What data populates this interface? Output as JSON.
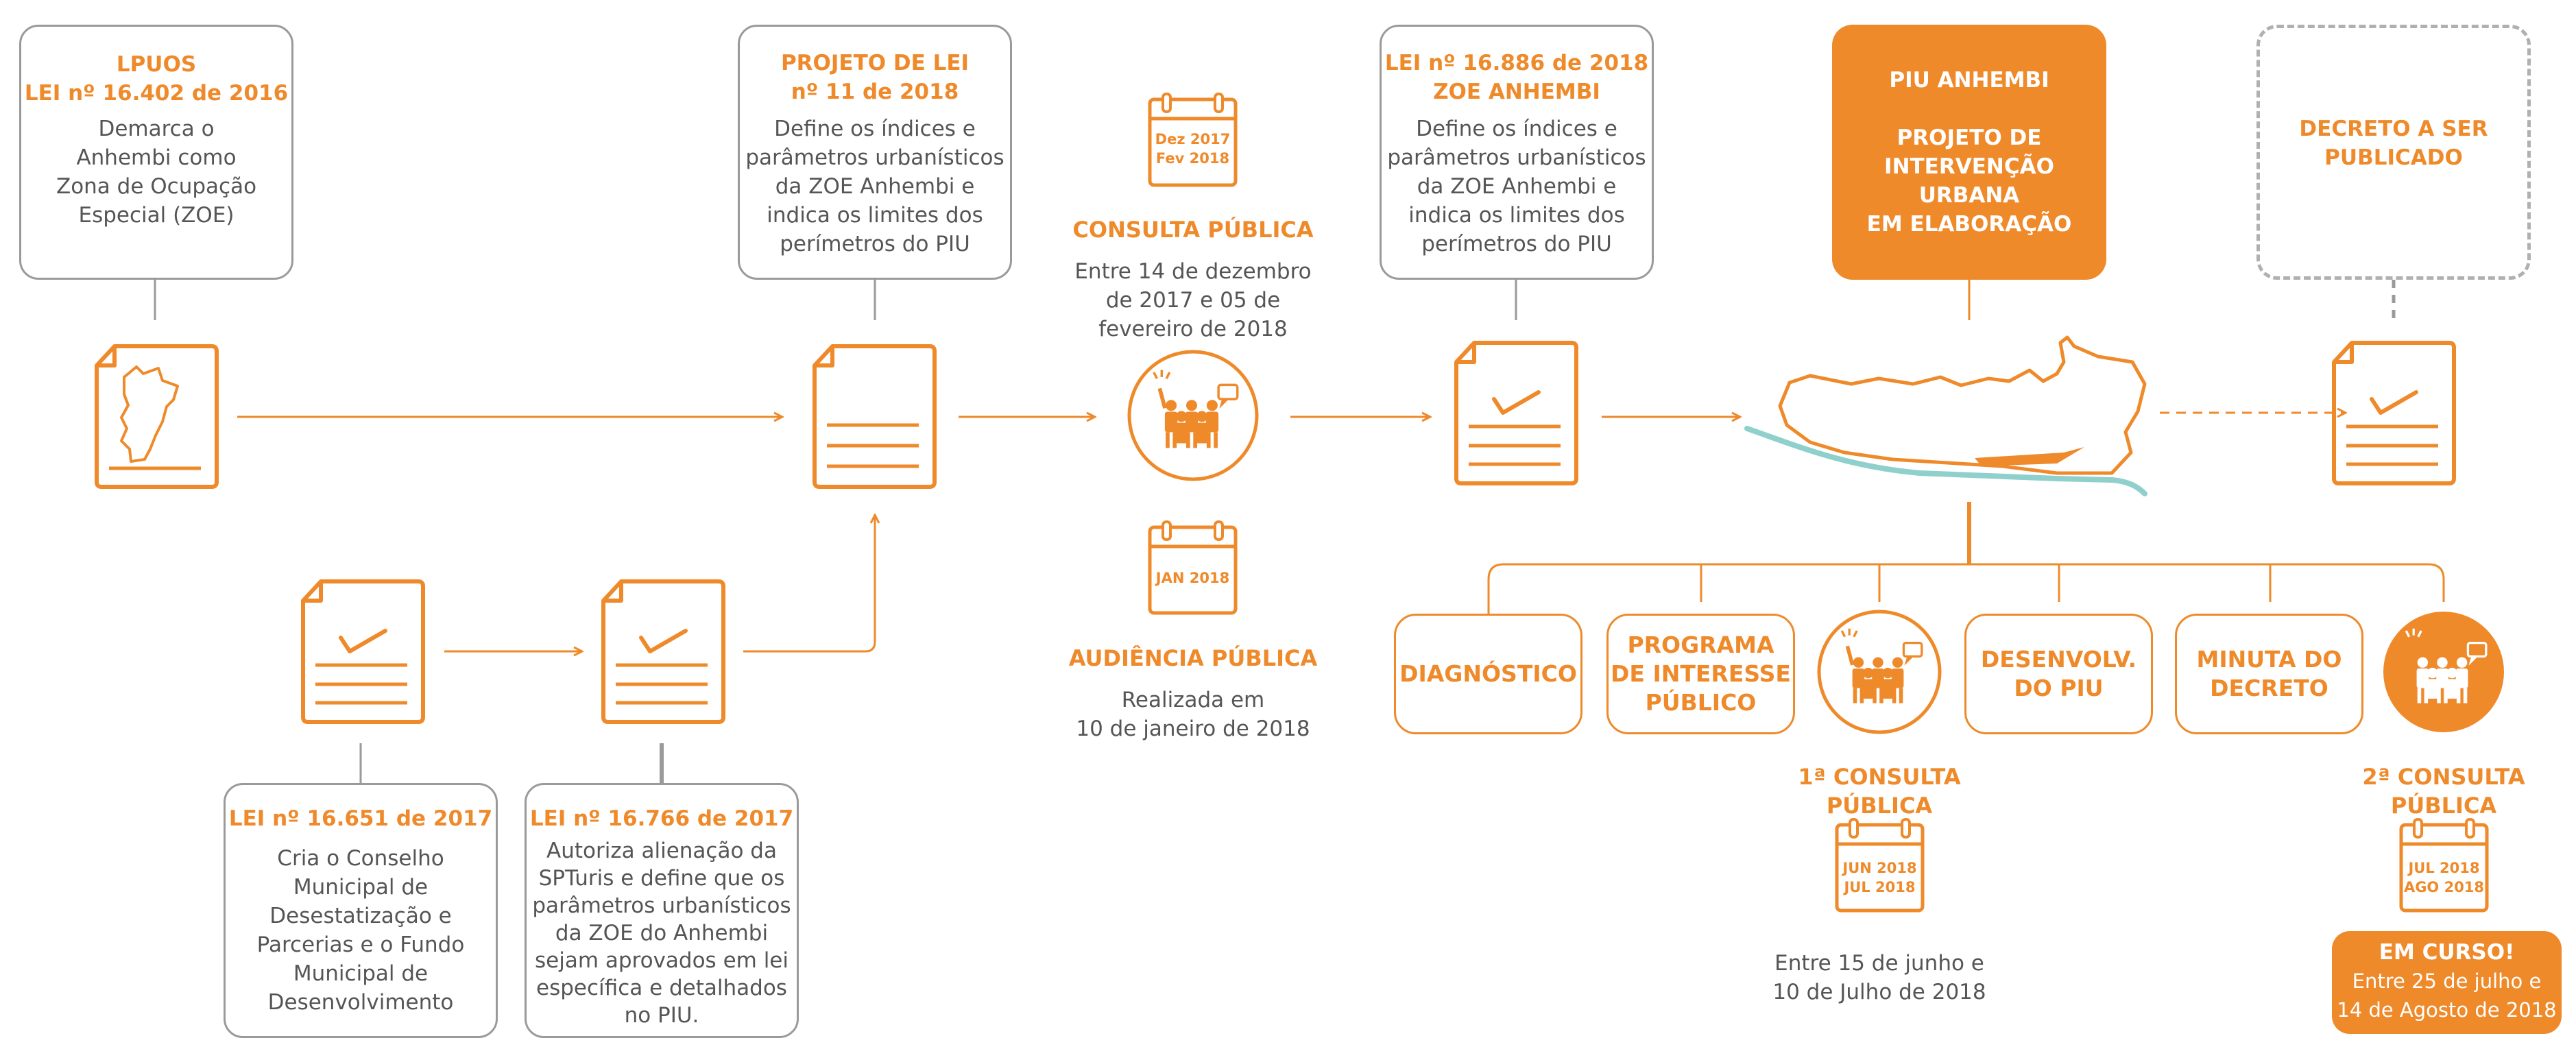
{
  "colors": {
    "accent": "#ef8a2b",
    "gray": "#9a9a9a",
    "river": "#8fd0cc",
    "text": "#555555"
  },
  "lpuos": {
    "title": "LPUOS\nLEI nº 16.402 de 2016",
    "body": "Demarca o\nAnhembi como\nZona de Ocupação\nEspecial (ZOE)"
  },
  "projeto_lei": {
    "title": "PROJETO DE LEI\nnº 11 de 2018",
    "body": "Define os índices e\nparâmetros urbanísticos\nda ZOE Anhembi e\nindica os limites dos\nperímetros do PIU"
  },
  "lei_16886": {
    "title": "LEI nº 16.886 de 2018\nZOE ANHEMBI",
    "body": "Define os índices e\nparâmetros urbanísticos\nda ZOE Anhembi e\nindica os limites dos\nperímetros do PIU"
  },
  "piu": {
    "text": "PIU ANHEMBI\n\nPROJETO DE\nINTERVENÇÃO\nURBANA\nEM ELABORAÇÃO"
  },
  "decreto": {
    "text": "DECRETO A SER\nPUBLICADO"
  },
  "consulta_publica": {
    "date": "Dez 2017\nFev 2018",
    "title": "CONSULTA PÚBLICA",
    "body": "Entre 14 de dezembro\nde 2017 e 05 de\nfevereiro de 2018"
  },
  "audiencia": {
    "date": "JAN 2018",
    "title": "AUDIÊNCIA PÚBLICA",
    "body": "Realizada em\n10 de janeiro de 2018"
  },
  "lei_16651": {
    "title": "LEI nº 16.651 de 2017",
    "body": "Cria o Conselho\nMunicipal de\nDesestatização e\nParcerias e o Fundo\nMunicipal de\nDesenvolvimento"
  },
  "lei_16766": {
    "title": "LEI nº 16.766 de 2017",
    "body": "Autoriza alienação da\nSPTuris e define que os\nparâmetros urbanísticos\nda ZOE do Anhembi\nsejam aprovados em lei\nespecífica e detalhados\nno PIU."
  },
  "stages": {
    "diagnostico": "DIAGNÓSTICO",
    "programa": "PROGRAMA\nDE INTERESSE\nPÚBLICO",
    "desenvolv": "DESENVOLV.\nDO PIU",
    "minuta": "MINUTA DO\nDECRETO"
  },
  "consulta1": {
    "title": "1ª CONSULTA\nPÚBLICA",
    "date": "JUN 2018\nJUL 2018",
    "body": "Entre 15 de junho e\n10 de Julho de 2018"
  },
  "consulta2": {
    "title": "2ª CONSULTA\nPÚBLICA",
    "date": "JUL 2018\nAGO 2018",
    "status": "EM CURSO!",
    "body": "Entre 25 de julho e\n14 de Agosto de 2018"
  }
}
